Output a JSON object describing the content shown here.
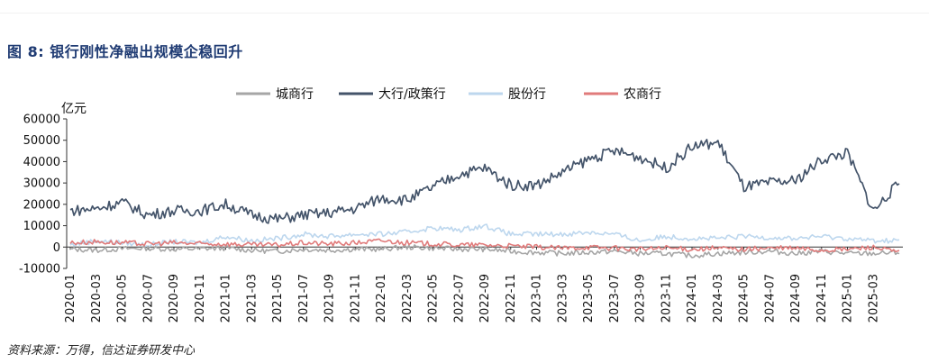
{
  "header": {
    "top_strip_text": "",
    "figure_label": "图 8:",
    "figure_title": "银行刚性净融出规模企稳回升"
  },
  "footer": {
    "source": "资料来源：万得，信达证券研发中心"
  },
  "colors": {
    "城商行": "#a6a6a6",
    "大行/政策行": "#44546a",
    "股份行": "#bdd7ee",
    "农商行": "#e07b7b"
  },
  "chart_data": {
    "type": "line",
    "title": "银行刚性净融出规模企稳回升",
    "ylabel": "亿元",
    "xlabel": "",
    "ylim": [
      -10000,
      60000
    ],
    "yticks": [
      -10000,
      0,
      10000,
      20000,
      30000,
      40000,
      50000,
      60000
    ],
    "x_tick_labels": [
      "2020-01",
      "2020-03",
      "2020-05",
      "2020-07",
      "2020-09",
      "2020-11",
      "2021-01",
      "2021-03",
      "2021-05",
      "2021-07",
      "2021-09",
      "2021-11",
      "2022-01",
      "2022-03",
      "2022-05",
      "2022-07",
      "2022-09",
      "2022-11",
      "2023-01",
      "2023-03",
      "2023-05",
      "2023-07",
      "2023-09",
      "2023-11",
      "2024-01",
      "2024-03",
      "2024-05",
      "2024-07",
      "2024-09",
      "2024-11",
      "2025-01",
      "2025-03"
    ],
    "legend_position": "top",
    "grid": false,
    "x": [
      "2020-01",
      "2020-03",
      "2020-05",
      "2020-07",
      "2020-09",
      "2020-11",
      "2021-01",
      "2021-03",
      "2021-05",
      "2021-07",
      "2021-09",
      "2021-11",
      "2022-01",
      "2022-03",
      "2022-05",
      "2022-07",
      "2022-09",
      "2022-11",
      "2023-01",
      "2023-03",
      "2023-05",
      "2023-07",
      "2023-09",
      "2023-11",
      "2024-01",
      "2024-03",
      "2024-05",
      "2024-07",
      "2024-09",
      "2024-11",
      "2025-01",
      "2025-03",
      "2025-04"
    ],
    "series": [
      {
        "name": "城商行",
        "values": [
          -1000,
          -1500,
          -800,
          -500,
          -1000,
          -800,
          -500,
          -1500,
          -2000,
          -1000,
          -1500,
          -1000,
          -1000,
          0,
          -500,
          -1000,
          -1000,
          -2000,
          -2500,
          -3000,
          -2500,
          -2000,
          -3000,
          -3000,
          -4000,
          -3000,
          -2500,
          -2000,
          -3000,
          -2000,
          -3000,
          -3000,
          -2500
        ]
      },
      {
        "name": "大行/政策行",
        "values": [
          17000,
          18000,
          21000,
          15000,
          17000,
          17000,
          20000,
          15000,
          13000,
          15000,
          16000,
          18000,
          23000,
          22000,
          28000,
          34000,
          37000,
          29000,
          29000,
          35000,
          41000,
          45000,
          42000,
          37000,
          47000,
          49000,
          28000,
          30000,
          31000,
          41000,
          44000,
          17000,
          30000
        ]
      },
      {
        "name": "股份行",
        "values": [
          1000,
          3000,
          2000,
          1000,
          2500,
          2000,
          5000,
          3000,
          4000,
          6000,
          5000,
          6000,
          6000,
          7000,
          9000,
          8000,
          10000,
          6000,
          6000,
          6000,
          7000,
          6000,
          3000,
          5000,
          4000,
          4000,
          5000,
          4500,
          4000,
          5000,
          4000,
          3000,
          3000
        ]
      },
      {
        "name": "农商行",
        "values": [
          2000,
          2500,
          2000,
          1500,
          2000,
          1500,
          1500,
          1000,
          1000,
          2000,
          1500,
          2000,
          3000,
          2000,
          1500,
          1000,
          1000,
          500,
          0,
          -500,
          0,
          -500,
          -1000,
          -500,
          -1000,
          -500,
          -1000,
          -500,
          -500,
          -1500,
          -1000,
          0,
          -2500
        ]
      }
    ]
  }
}
